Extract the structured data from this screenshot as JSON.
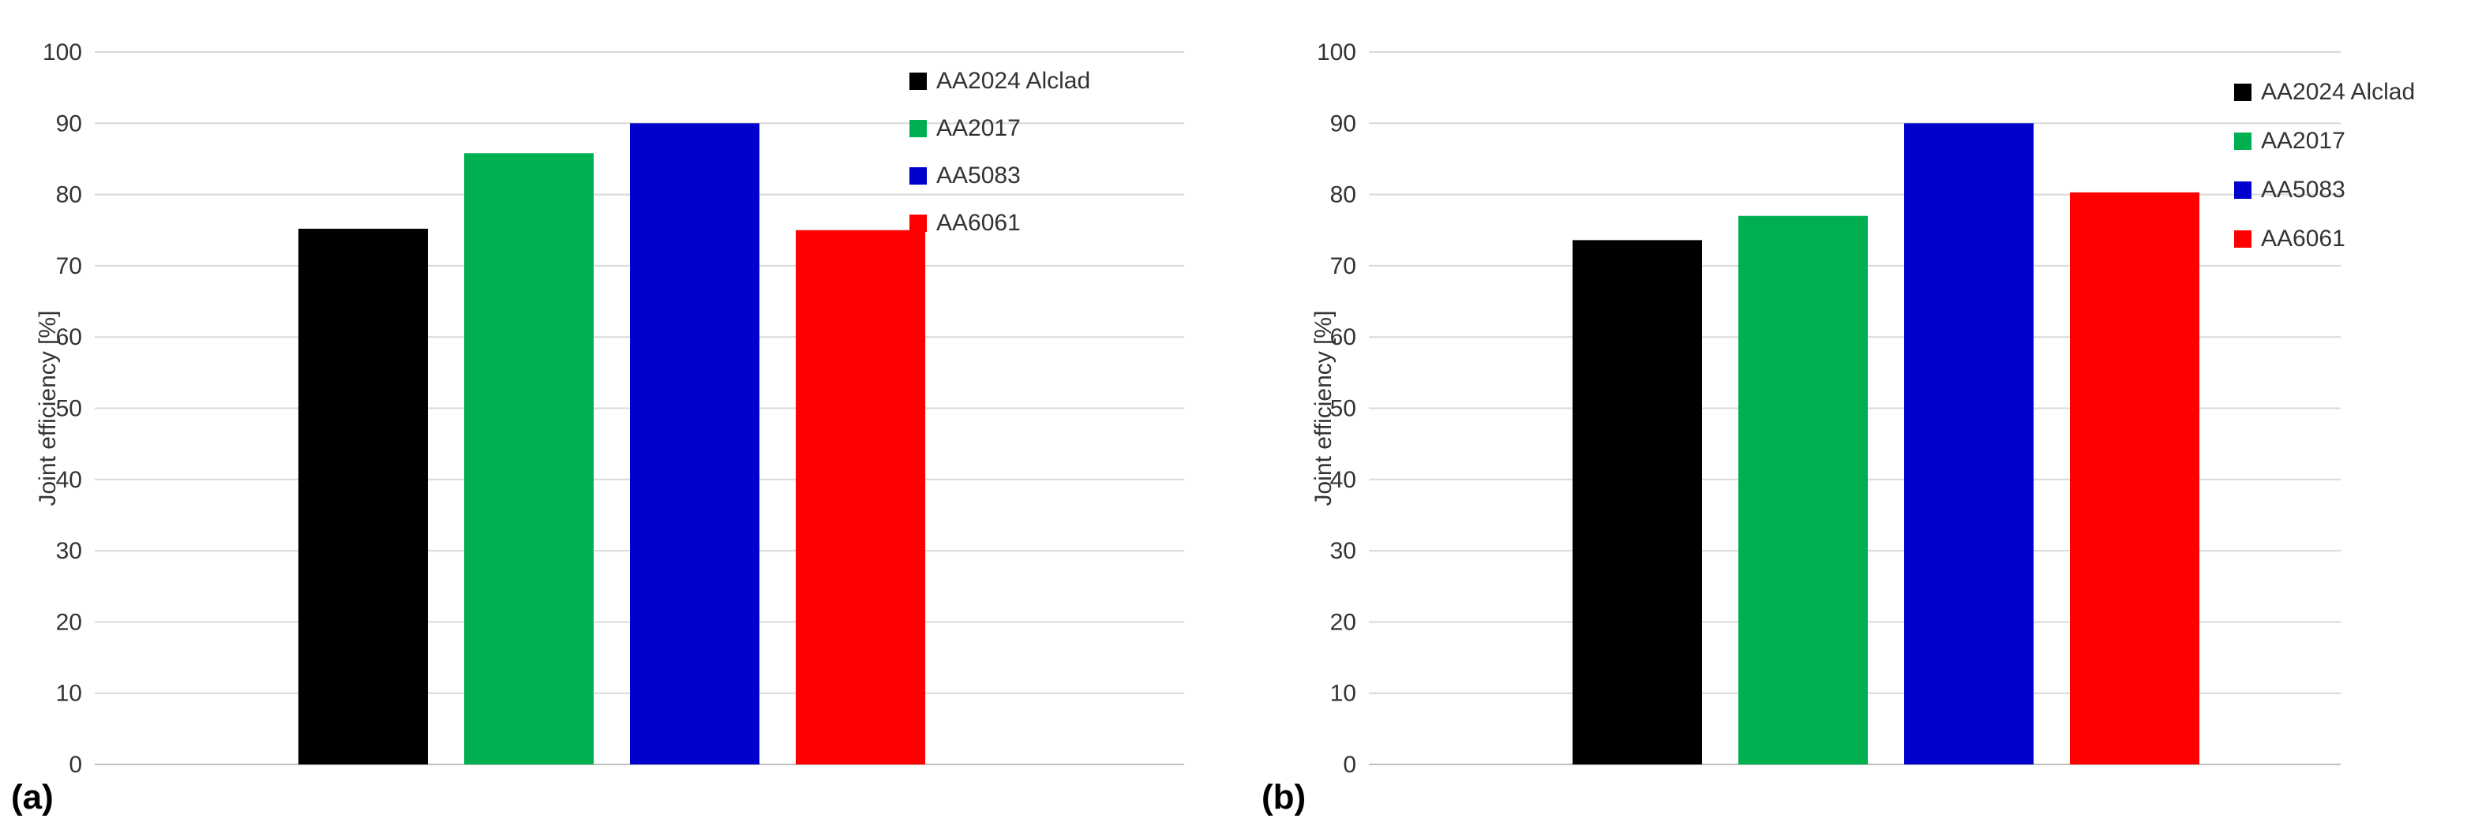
{
  "chart_data": [
    {
      "type": "bar",
      "panel_label": "(a)",
      "categories": [
        "AA2024 Alclad",
        "AA2017",
        "AA5083",
        "AA6061"
      ],
      "values": [
        75.2,
        85.8,
        90.0,
        75.0
      ],
      "colors": [
        "#000000",
        "#00b050",
        "#0000cc",
        "#ff0000"
      ],
      "ylabel": "Joint efficiency [%]",
      "ylim": [
        0,
        100
      ],
      "yticks": [
        0,
        10,
        20,
        30,
        40,
        50,
        60,
        70,
        80,
        90,
        100
      ],
      "grid": true,
      "legend": "top-right"
    },
    {
      "type": "bar",
      "panel_label": "(b)",
      "categories": [
        "AA2024 Alclad",
        "AA2017",
        "AA5083",
        "AA6061"
      ],
      "values": [
        73.6,
        77.0,
        90.0,
        80.3
      ],
      "colors": [
        "#000000",
        "#00b050",
        "#0000cc",
        "#ff0000"
      ],
      "ylabel": "Joint efficiency [%]",
      "ylim": [
        0,
        100
      ],
      "yticks": [
        0,
        10,
        20,
        30,
        40,
        50,
        60,
        70,
        80,
        90,
        100
      ],
      "grid": true,
      "legend": "top-right"
    }
  ]
}
